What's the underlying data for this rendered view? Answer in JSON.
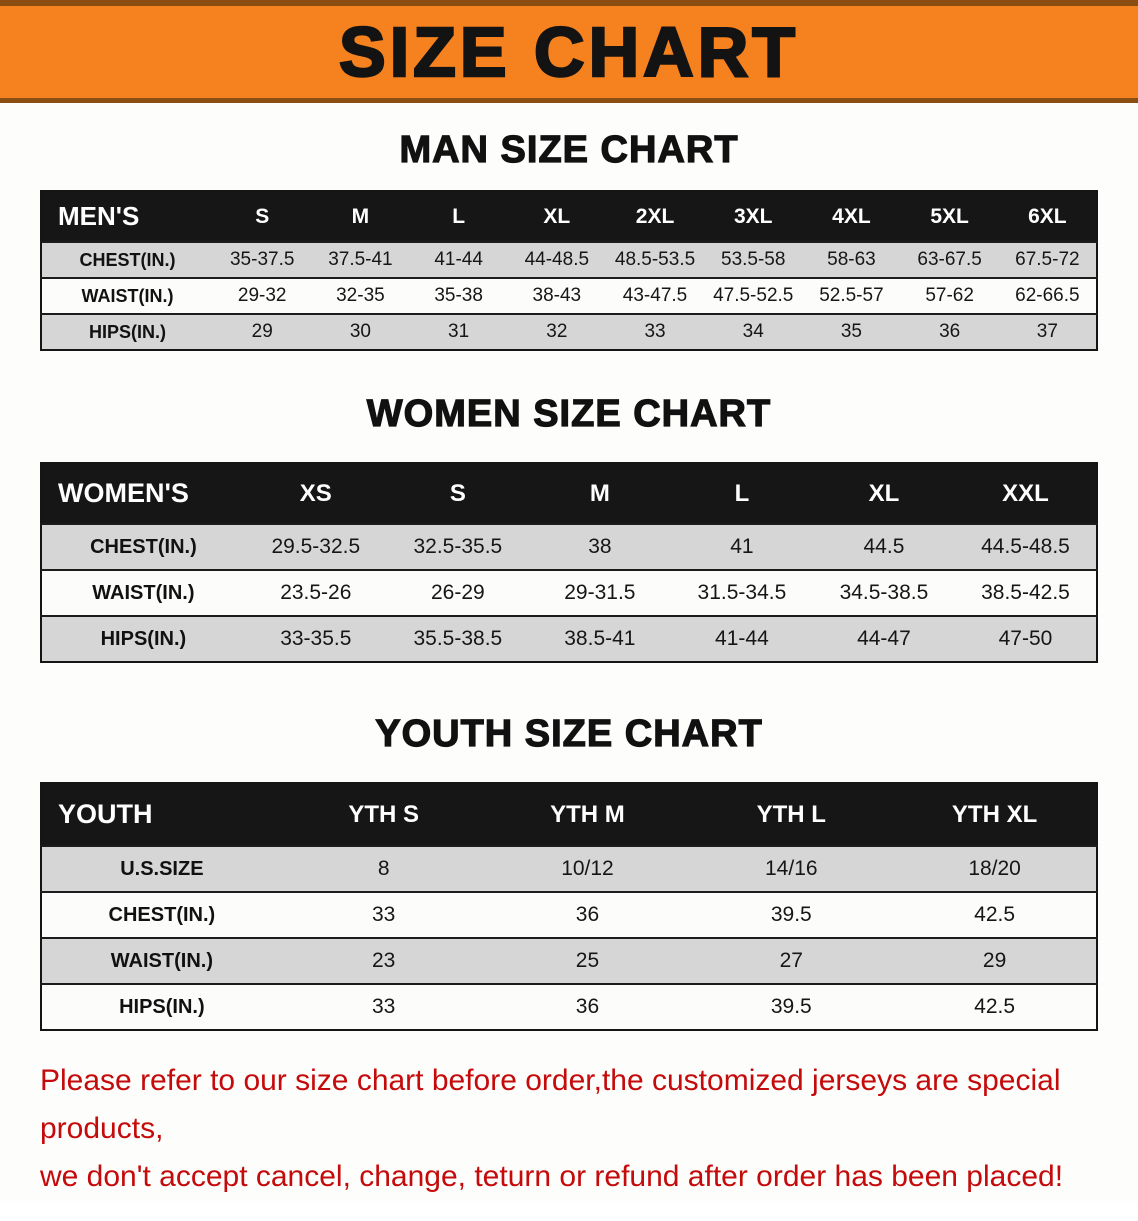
{
  "banner": {
    "title": "SIZE CHART",
    "background_color": "#f5821f",
    "text_color": "#131313"
  },
  "chart_data": [
    {
      "type": "table",
      "title": "MAN SIZE CHART",
      "header": [
        "MEN'S",
        "S",
        "M",
        "L",
        "XL",
        "2XL",
        "3XL",
        "4XL",
        "5XL",
        "6XL"
      ],
      "rows": [
        [
          "CHEST(IN.)",
          "35-37.5",
          "37.5-41",
          "41-44",
          "44-48.5",
          "48.5-53.5",
          "53.5-58",
          "58-63",
          "63-67.5",
          "67.5-72"
        ],
        [
          "WAIST(IN.)",
          "29-32",
          "32-35",
          "35-38",
          "38-43",
          "43-47.5",
          "47.5-52.5",
          "52.5-57",
          "57-62",
          "62-66.5"
        ],
        [
          "HIPS(IN.)",
          "29",
          "30",
          "31",
          "32",
          "33",
          "34",
          "35",
          "36",
          "37"
        ]
      ]
    },
    {
      "type": "table",
      "title": "WOMEN SIZE CHART",
      "header": [
        "WOMEN'S",
        "XS",
        "S",
        "M",
        "L",
        "XL",
        "XXL"
      ],
      "rows": [
        [
          "CHEST(IN.)",
          "29.5-32.5",
          "32.5-35.5",
          "38",
          "41",
          "44.5",
          "44.5-48.5"
        ],
        [
          "WAIST(IN.)",
          "23.5-26",
          "26-29",
          "29-31.5",
          "31.5-34.5",
          "34.5-38.5",
          "38.5-42.5"
        ],
        [
          "HIPS(IN.)",
          "33-35.5",
          "35.5-38.5",
          "38.5-41",
          "41-44",
          "44-47",
          "47-50"
        ]
      ]
    },
    {
      "type": "table",
      "title": "YOUTH SIZE CHART",
      "header": [
        "YOUTH",
        "YTH S",
        "YTH M",
        "YTH L",
        "YTH XL"
      ],
      "rows": [
        [
          "U.S.SIZE",
          "8",
          "10/12",
          "14/16",
          "18/20"
        ],
        [
          "CHEST(IN.)",
          "33",
          "36",
          "39.5",
          "42.5"
        ],
        [
          "WAIST(IN.)",
          "23",
          "25",
          "27",
          "29"
        ],
        [
          "HIPS(IN.)",
          "33",
          "36",
          "39.5",
          "42.5"
        ]
      ]
    }
  ],
  "footer": {
    "lines": [
      "Please refer to our size chart before order,the customized jerseys are special products,",
      "we don't accept cancel, change, teturn or refund after order has been placed!"
    ],
    "text_color": "#c40a0a"
  }
}
